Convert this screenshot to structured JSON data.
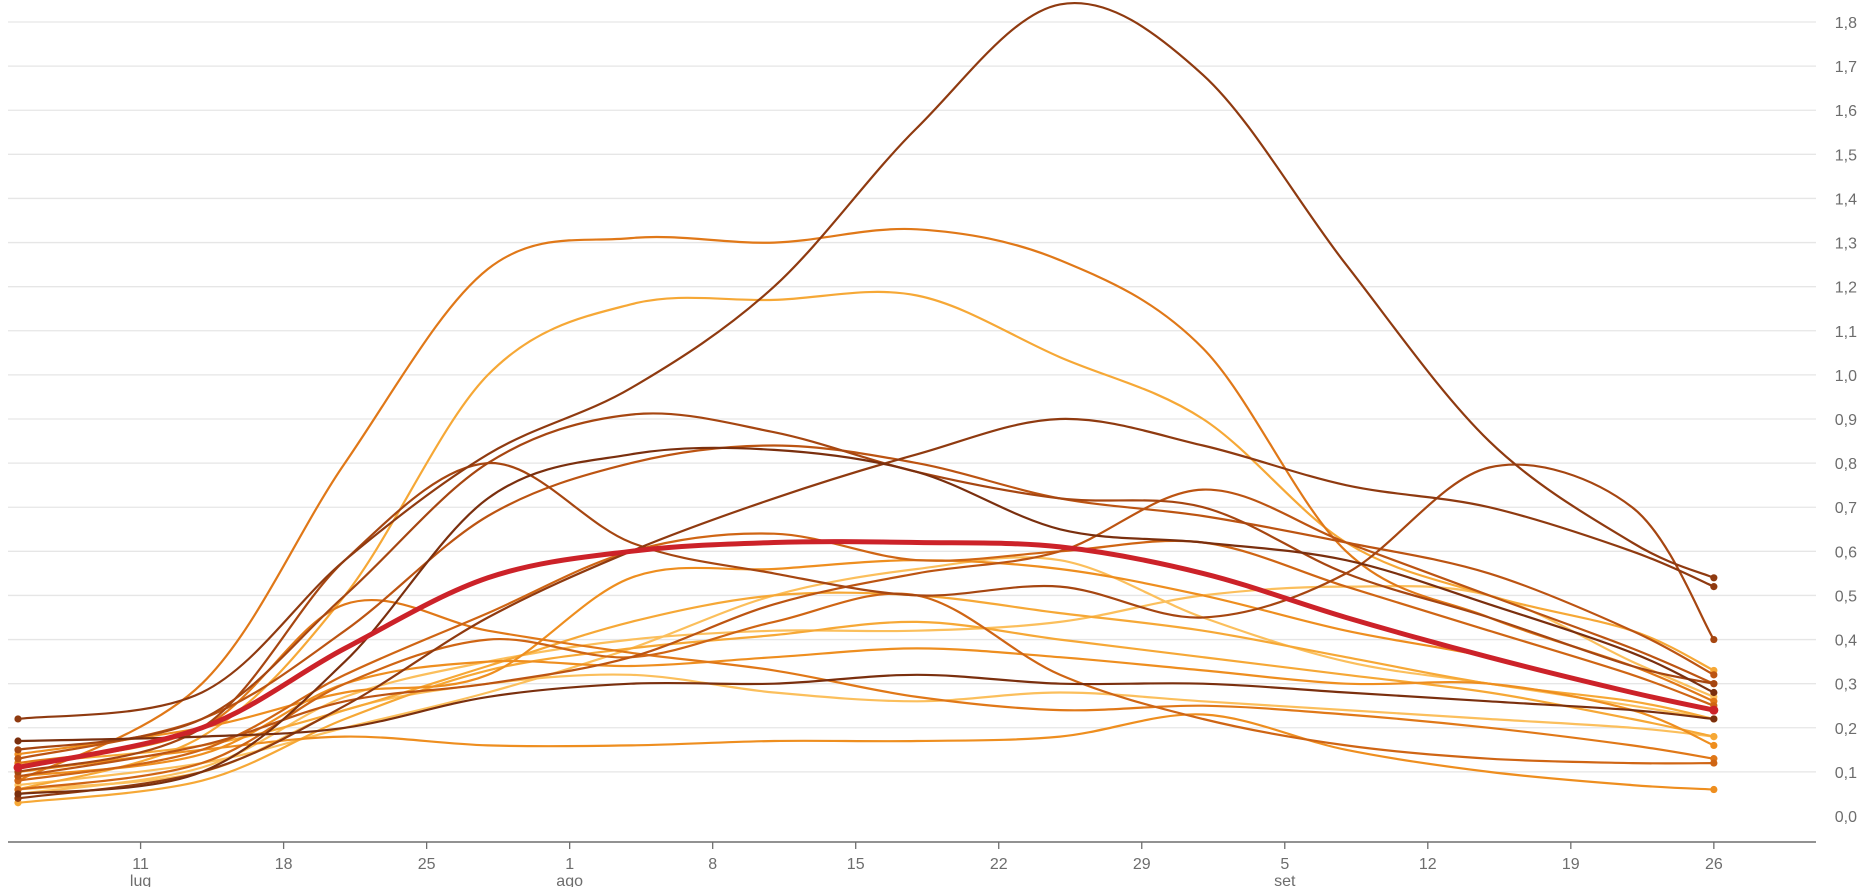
{
  "chart_data": {
    "type": "line",
    "title": "",
    "xlabel": "",
    "ylabel": "",
    "x_ticks": [
      {
        "x": 11,
        "label": "11",
        "month": "lug"
      },
      {
        "x": 18,
        "label": "18"
      },
      {
        "x": 25,
        "label": "25"
      },
      {
        "x": 32,
        "label": "1",
        "month": "ago"
      },
      {
        "x": 39,
        "label": "8"
      },
      {
        "x": 46,
        "label": "15"
      },
      {
        "x": 53,
        "label": "22"
      },
      {
        "x": 60,
        "label": "29"
      },
      {
        "x": 67,
        "label": "5",
        "month": "set"
      },
      {
        "x": 74,
        "label": "12"
      },
      {
        "x": 81,
        "label": "19"
      },
      {
        "x": 88,
        "label": "26"
      }
    ],
    "x": [
      5,
      14,
      21,
      28,
      35,
      42,
      49,
      56,
      63,
      70,
      77,
      84,
      88
    ],
    "ylim": [
      0,
      1.8
    ],
    "y_ticks": [
      {
        "v": 0.0,
        "label": "0,0"
      },
      {
        "v": 0.1,
        "label": "0,1"
      },
      {
        "v": 0.2,
        "label": "0,2"
      },
      {
        "v": 0.3,
        "label": "0,3"
      },
      {
        "v": 0.4,
        "label": "0,4"
      },
      {
        "v": 0.5,
        "label": "0,5"
      },
      {
        "v": 0.6,
        "label": "0,6"
      },
      {
        "v": 0.7,
        "label": "0,7"
      },
      {
        "v": 0.8,
        "label": "0,8"
      },
      {
        "v": 0.9,
        "label": "0,9"
      },
      {
        "v": 1.0,
        "label": "1,0"
      },
      {
        "v": 1.1,
        "label": "1,1"
      },
      {
        "v": 1.2,
        "label": "1,2"
      },
      {
        "v": 1.3,
        "label": "1,3"
      },
      {
        "v": 1.4,
        "label": "1,4"
      },
      {
        "v": 1.5,
        "label": "1,5"
      },
      {
        "v": 1.6,
        "label": "1,6"
      },
      {
        "v": 1.7,
        "label": "1,7"
      },
      {
        "v": 1.8,
        "label": "1,8"
      }
    ],
    "grid": true,
    "y_axis_side": "right",
    "legend": "top (cropped)",
    "colors": {
      "highlight": "#cc2229",
      "palette": [
        "#fbbf5c",
        "#f6a836",
        "#ee8e1f",
        "#e07818",
        "#cf6514",
        "#bc5412",
        "#a64611",
        "#8f3a10",
        "#7a2f0e"
      ]
    },
    "highlight_series": {
      "values": [
        0.11,
        0.2,
        0.38,
        0.54,
        0.6,
        0.62,
        0.62,
        0.61,
        0.55,
        0.45,
        0.36,
        0.28,
        0.24
      ],
      "color": "#cc2229"
    },
    "series": [
      {
        "values": [
          0.22,
          0.28,
          0.58,
          0.82,
          0.97,
          1.2,
          1.56,
          1.84,
          1.68,
          1.25,
          0.85,
          0.62,
          0.54
        ],
        "color": "#8f3a10"
      },
      {
        "values": [
          0.08,
          0.3,
          0.8,
          1.24,
          1.31,
          1.3,
          1.33,
          1.26,
          1.06,
          0.6,
          0.45,
          0.34,
          0.26
        ],
        "color": "#e07818"
      },
      {
        "values": [
          0.06,
          0.18,
          0.5,
          1.0,
          1.16,
          1.17,
          1.18,
          1.04,
          0.9,
          0.62,
          0.5,
          0.42,
          0.33
        ],
        "color": "#f6a836"
      },
      {
        "values": [
          0.15,
          0.22,
          0.5,
          0.8,
          0.91,
          0.87,
          0.78,
          0.72,
          0.7,
          0.55,
          0.45,
          0.34,
          0.3
        ],
        "color": "#a64611"
      },
      {
        "values": [
          0.05,
          0.1,
          0.35,
          0.72,
          0.82,
          0.83,
          0.78,
          0.65,
          0.62,
          0.58,
          0.48,
          0.37,
          0.28
        ],
        "color": "#7a2f0e"
      },
      {
        "values": [
          0.13,
          0.22,
          0.42,
          0.68,
          0.8,
          0.84,
          0.8,
          0.72,
          0.68,
          0.62,
          0.55,
          0.42,
          0.32
        ],
        "color": "#bc5412"
      },
      {
        "values": [
          0.04,
          0.1,
          0.25,
          0.45,
          0.6,
          0.72,
          0.82,
          0.9,
          0.84,
          0.75,
          0.7,
          0.6,
          0.52
        ],
        "color": "#8f3a10"
      },
      {
        "values": [
          0.1,
          0.2,
          0.58,
          0.8,
          0.62,
          0.55,
          0.5,
          0.52,
          0.45,
          0.55,
          0.79,
          0.7,
          0.4
        ],
        "color": "#a64611"
      },
      {
        "values": [
          0.08,
          0.15,
          0.32,
          0.46,
          0.6,
          0.64,
          0.58,
          0.6,
          0.62,
          0.52,
          0.42,
          0.32,
          0.25
        ],
        "color": "#cf6514"
      },
      {
        "values": [
          0.09,
          0.16,
          0.26,
          0.3,
          0.36,
          0.48,
          0.55,
          0.6,
          0.74,
          0.62,
          0.5,
          0.38,
          0.3
        ],
        "color": "#bc5412"
      },
      {
        "values": [
          0.17,
          0.18,
          0.2,
          0.27,
          0.3,
          0.3,
          0.32,
          0.3,
          0.3,
          0.28,
          0.26,
          0.24,
          0.22
        ],
        "color": "#7a2f0e"
      },
      {
        "values": [
          0.12,
          0.2,
          0.48,
          0.42,
          0.37,
          0.33,
          0.27,
          0.24,
          0.25,
          0.23,
          0.2,
          0.16,
          0.13
        ],
        "color": "#e07818"
      },
      {
        "values": [
          0.06,
          0.12,
          0.3,
          0.4,
          0.36,
          0.44,
          0.5,
          0.32,
          0.22,
          0.16,
          0.13,
          0.12,
          0.12
        ],
        "color": "#cf6514"
      },
      {
        "values": [
          0.1,
          0.15,
          0.18,
          0.16,
          0.16,
          0.17,
          0.17,
          0.18,
          0.23,
          0.15,
          0.1,
          0.07,
          0.06
        ],
        "color": "#ee8e1f"
      },
      {
        "values": [
          0.12,
          0.16,
          0.24,
          0.34,
          0.44,
          0.5,
          0.5,
          0.46,
          0.42,
          0.36,
          0.3,
          0.26,
          0.22
        ],
        "color": "#f6a836"
      },
      {
        "values": [
          0.07,
          0.12,
          0.2,
          0.28,
          0.38,
          0.5,
          0.56,
          0.58,
          0.45,
          0.35,
          0.3,
          0.25,
          0.22
        ],
        "color": "#fbbf5c"
      },
      {
        "values": [
          0.05,
          0.11,
          0.27,
          0.35,
          0.4,
          0.42,
          0.42,
          0.44,
          0.5,
          0.52,
          0.5,
          0.35,
          0.27
        ],
        "color": "#fbbf5c"
      },
      {
        "values": [
          0.03,
          0.08,
          0.22,
          0.33,
          0.38,
          0.41,
          0.44,
          0.4,
          0.36,
          0.32,
          0.28,
          0.22,
          0.18
        ],
        "color": "#f6a836"
      },
      {
        "values": [
          0.09,
          0.14,
          0.3,
          0.35,
          0.34,
          0.36,
          0.38,
          0.36,
          0.33,
          0.3,
          0.3,
          0.24,
          0.16
        ],
        "color": "#ee8e1f"
      },
      {
        "values": [
          0.06,
          0.1,
          0.24,
          0.3,
          0.32,
          0.28,
          0.26,
          0.28,
          0.26,
          0.24,
          0.22,
          0.2,
          0.18
        ],
        "color": "#fbbf5c"
      },
      {
        "values": [
          0.14,
          0.2,
          0.28,
          0.32,
          0.54,
          0.56,
          0.58,
          0.56,
          0.5,
          0.42,
          0.36,
          0.28,
          0.24
        ],
        "color": "#ee8e1f"
      }
    ]
  }
}
